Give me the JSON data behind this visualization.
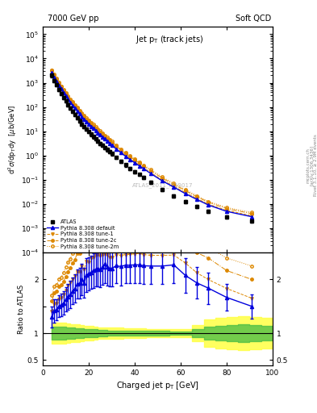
{
  "title_left": "7000 GeV pp",
  "title_right": "Soft QCD",
  "panel_title": "Jet p_{T} (track jets)",
  "ylabel_main": "d^{2}#sigma/dp_{T}dy  [#mub/GeV]",
  "ylabel_ratio": "Ratio to ATLAS",
  "xlabel": "Charged jet p_{T} [GeV]",
  "right_label_1": "Rivet 3.1.10, >= 2.9M events",
  "right_label_2": "[arXiv:1306.3436]",
  "right_label_3": "mcplots.cern.ch",
  "watermark": "ATLAS_2011_I919017",
  "color_atlas": "#000000",
  "color_default": "#0000dd",
  "color_orange": "#dd8800",
  "color_yellow": "#ffff44",
  "color_green": "#44bb44",
  "bg_color": "#ffffff",
  "xlim": [
    0,
    100
  ],
  "ylim_main": [
    0.0001,
    200000.0
  ],
  "ylim_ratio": [
    0.4,
    2.5
  ],
  "atlas_x": [
    4,
    5,
    6,
    7,
    8,
    9,
    10,
    11,
    12,
    13,
    14,
    15,
    16,
    17,
    18,
    19,
    20,
    21,
    22,
    23,
    24,
    25,
    26,
    27,
    28,
    29,
    30,
    32,
    34,
    36,
    38,
    40,
    42,
    44,
    47,
    52,
    57,
    62,
    67,
    72,
    80,
    91
  ],
  "atlas_y": [
    2000,
    1200,
    800,
    520,
    360,
    250,
    175,
    125,
    90,
    65,
    48,
    35,
    27,
    20,
    16,
    12,
    9.5,
    7.5,
    6,
    4.8,
    3.9,
    3.2,
    2.6,
    2.1,
    1.75,
    1.45,
    1.2,
    0.82,
    0.58,
    0.41,
    0.3,
    0.22,
    0.165,
    0.125,
    0.08,
    0.04,
    0.022,
    0.013,
    0.008,
    0.005,
    0.003,
    0.002
  ],
  "atlas_yerr": [
    300,
    180,
    110,
    70,
    50,
    35,
    24,
    18,
    13,
    9,
    7,
    5,
    4,
    3,
    2.3,
    1.8,
    1.4,
    1.1,
    0.9,
    0.7,
    0.6,
    0.48,
    0.39,
    0.32,
    0.27,
    0.22,
    0.18,
    0.12,
    0.09,
    0.062,
    0.045,
    0.033,
    0.025,
    0.019,
    0.012,
    0.006,
    0.0033,
    0.002,
    0.0012,
    0.0008,
    0.00045,
    0.0003
  ],
  "py_def_x": [
    4,
    5,
    6,
    7,
    8,
    9,
    10,
    11,
    12,
    13,
    14,
    15,
    16,
    17,
    18,
    19,
    20,
    21,
    22,
    23,
    24,
    25,
    26,
    27,
    28,
    29,
    30,
    32,
    34,
    36,
    38,
    40,
    42,
    44,
    47,
    52,
    57,
    62,
    67,
    72,
    80,
    91
  ],
  "py_def_y": [
    2600,
    1700,
    1150,
    780,
    550,
    390,
    285,
    210,
    155,
    116,
    88,
    67,
    52,
    40,
    31,
    25,
    20,
    16,
    13,
    10.5,
    8.6,
    7.0,
    5.8,
    4.8,
    3.9,
    3.2,
    2.65,
    1.85,
    1.3,
    0.93,
    0.68,
    0.5,
    0.375,
    0.282,
    0.18,
    0.09,
    0.05,
    0.027,
    0.0155,
    0.0092,
    0.005,
    0.003
  ],
  "py1_x": [
    4,
    5,
    6,
    7,
    8,
    9,
    10,
    11,
    12,
    13,
    14,
    15,
    16,
    17,
    18,
    19,
    20,
    21,
    22,
    23,
    24,
    25,
    26,
    27,
    28,
    29,
    30,
    32,
    34,
    36,
    38,
    40,
    42,
    44,
    47,
    52,
    57,
    62,
    67,
    72,
    80,
    91
  ],
  "py1_y": [
    2800,
    1850,
    1250,
    850,
    600,
    430,
    315,
    235,
    175,
    130,
    99,
    75,
    58,
    45,
    35,
    28,
    22,
    18,
    14.5,
    11.8,
    9.6,
    7.8,
    6.4,
    5.2,
    4.3,
    3.5,
    2.9,
    2.02,
    1.42,
    1.01,
    0.74,
    0.545,
    0.41,
    0.308,
    0.196,
    0.098,
    0.054,
    0.03,
    0.017,
    0.01,
    0.0055,
    0.0033
  ],
  "py2c_x": [
    4,
    5,
    6,
    7,
    8,
    9,
    10,
    11,
    12,
    13,
    14,
    15,
    16,
    17,
    18,
    19,
    20,
    21,
    22,
    23,
    24,
    25,
    26,
    27,
    28,
    29,
    30,
    32,
    34,
    36,
    38,
    40,
    42,
    44,
    47,
    52,
    57,
    62,
    67,
    72,
    80,
    91
  ],
  "py2c_y": [
    3200,
    2100,
    1420,
    970,
    685,
    490,
    360,
    268,
    200,
    150,
    114,
    87,
    67,
    52,
    41,
    32,
    26,
    21,
    17,
    13.7,
    11.2,
    9.1,
    7.5,
    6.1,
    5.0,
    4.1,
    3.4,
    2.4,
    1.68,
    1.2,
    0.88,
    0.65,
    0.488,
    0.366,
    0.234,
    0.117,
    0.064,
    0.036,
    0.02,
    0.012,
    0.0065,
    0.004
  ],
  "py2m_x": [
    4,
    5,
    6,
    7,
    8,
    9,
    10,
    11,
    12,
    13,
    14,
    15,
    16,
    17,
    18,
    19,
    20,
    21,
    22,
    23,
    24,
    25,
    26,
    27,
    28,
    29,
    30,
    32,
    34,
    36,
    38,
    40,
    42,
    44,
    47,
    52,
    57,
    62,
    67,
    72,
    80,
    91
  ],
  "py2m_y": [
    3400,
    2250,
    1520,
    1040,
    735,
    530,
    390,
    290,
    215,
    162,
    123,
    94,
    73,
    57,
    45,
    36,
    29,
    23.5,
    19,
    15.4,
    12.5,
    10.2,
    8.4,
    6.9,
    5.6,
    4.6,
    3.8,
    2.65,
    1.88,
    1.34,
    0.98,
    0.72,
    0.54,
    0.406,
    0.26,
    0.13,
    0.071,
    0.04,
    0.022,
    0.013,
    0.0072,
    0.0045
  ],
  "band_x_edges": [
    4,
    6,
    8,
    10,
    12,
    14,
    16,
    18,
    20,
    22,
    24,
    26,
    28,
    30,
    35,
    40,
    45,
    50,
    55,
    60,
    65,
    70,
    75,
    80,
    85,
    90,
    95,
    100
  ],
  "yellow_lo": [
    0.8,
    0.8,
    0.8,
    0.82,
    0.83,
    0.84,
    0.85,
    0.86,
    0.87,
    0.88,
    0.89,
    0.89,
    0.9,
    0.9,
    0.91,
    0.91,
    0.92,
    0.92,
    0.93,
    0.93,
    0.85,
    0.75,
    0.72,
    0.7,
    0.68,
    0.7,
    0.72,
    0.75
  ],
  "yellow_hi": [
    1.2,
    1.2,
    1.2,
    1.18,
    1.17,
    1.16,
    1.15,
    1.14,
    1.13,
    1.12,
    1.11,
    1.11,
    1.1,
    1.1,
    1.09,
    1.09,
    1.08,
    1.08,
    1.07,
    1.07,
    1.15,
    1.25,
    1.28,
    1.3,
    1.32,
    1.3,
    1.28,
    1.25
  ],
  "green_lo": [
    0.88,
    0.88,
    0.88,
    0.89,
    0.9,
    0.91,
    0.91,
    0.92,
    0.93,
    0.93,
    0.94,
    0.94,
    0.95,
    0.95,
    0.95,
    0.96,
    0.96,
    0.96,
    0.97,
    0.97,
    0.93,
    0.88,
    0.86,
    0.85,
    0.84,
    0.85,
    0.86,
    0.88
  ],
  "green_hi": [
    1.12,
    1.12,
    1.12,
    1.11,
    1.1,
    1.09,
    1.09,
    1.08,
    1.07,
    1.07,
    1.06,
    1.06,
    1.05,
    1.05,
    1.05,
    1.04,
    1.04,
    1.04,
    1.03,
    1.03,
    1.07,
    1.12,
    1.14,
    1.15,
    1.16,
    1.15,
    1.14,
    1.12
  ]
}
